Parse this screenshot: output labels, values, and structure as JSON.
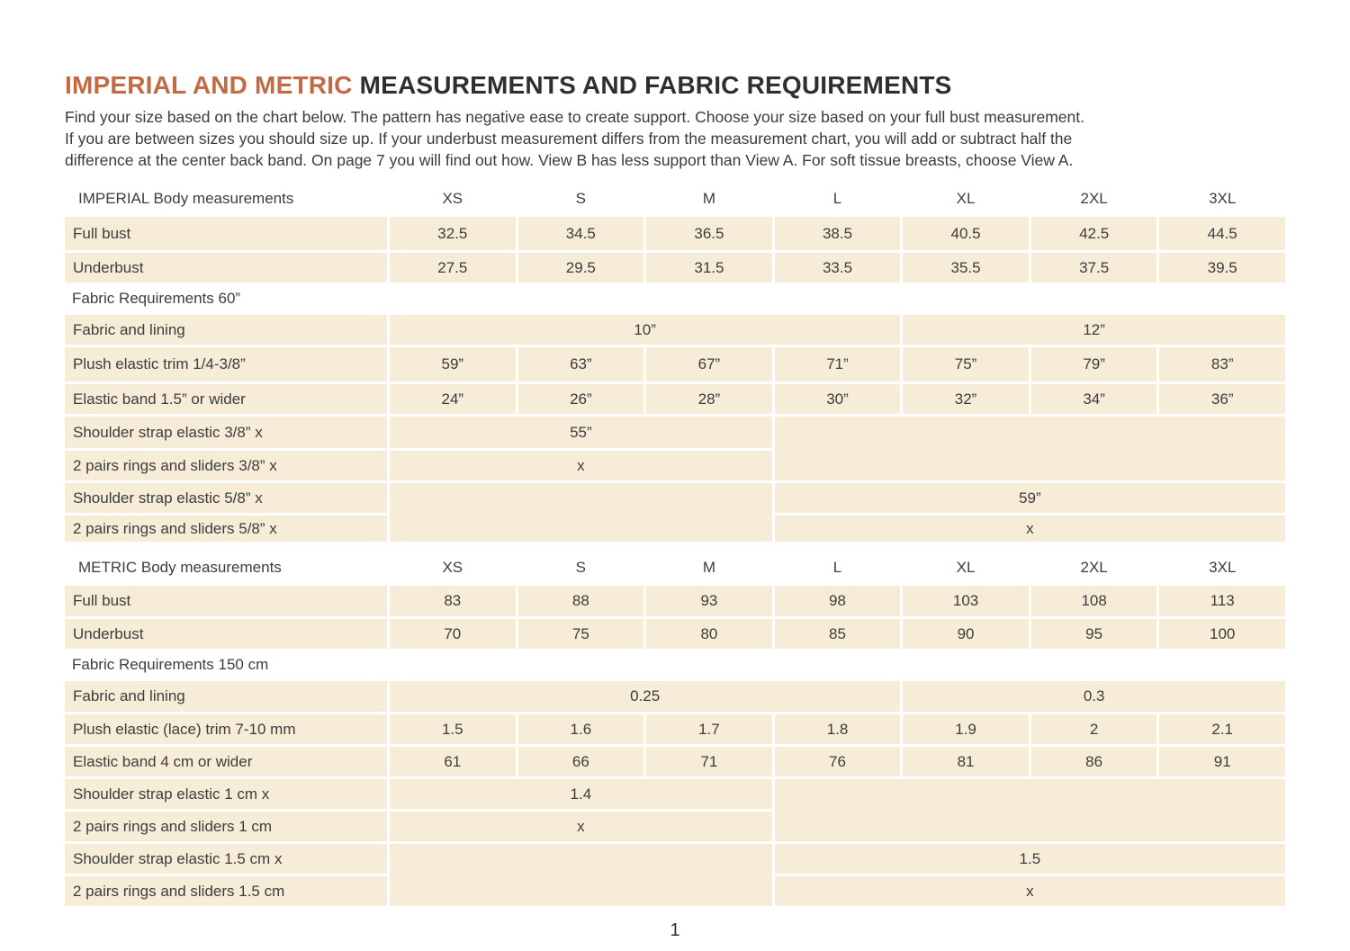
{
  "page": {
    "title_accent": "IMPERIAL AND METRIC",
    "title_rest": " MEASUREMENTS AND FABRIC REQUIREMENTS",
    "intro": [
      "Find your size based on the chart below. The pattern has negative ease to create support.  Choose your size based on your full bust measurement.",
      "If you are between sizes you should size up. If your underbust measurement differs from the measurement chart, you will add or subtract half the",
      "difference at the center back band. On page 7 you will find out how. View B has less support than View A. For soft tissue breasts, choose View A."
    ],
    "number": "1",
    "colors": {
      "accent": "#c16b44",
      "cell_bg": "#f6ecd7",
      "text": "#3d3d3d"
    }
  },
  "sizes": [
    "XS",
    "S",
    "M",
    "L",
    "XL",
    "2XL",
    "3XL"
  ],
  "imperial": {
    "section_label": "IMPERIAL Body measurements",
    "full_bust": {
      "label": "Full bust",
      "values": [
        "32.5",
        "34.5",
        "36.5",
        "38.5",
        "40.5",
        "42.5",
        "44.5"
      ]
    },
    "underbust": {
      "label": "Underbust",
      "values": [
        "27.5",
        "29.5",
        "31.5",
        "33.5",
        "35.5",
        "37.5",
        "39.5"
      ]
    },
    "fabric_requirements_label": "Fabric Requirements 60”",
    "fabric_lining": {
      "label": "Fabric and lining",
      "group_a": "10”",
      "group_b": "12”"
    },
    "plush_elastic": {
      "label": "Plush elastic trim 1/4-3/8”",
      "values": [
        "59”",
        "63”",
        "67”",
        "71”",
        "75”",
        "79”",
        "83”"
      ]
    },
    "elastic_band": {
      "label": "Elastic band 1.5” or wider",
      "values": [
        "24”",
        "26”",
        "28”",
        "30”",
        "32”",
        "34”",
        "36”"
      ]
    },
    "strap_small": {
      "label": "Shoulder strap elastic 3/8” x",
      "value": "55”"
    },
    "rings_small": {
      "label": "2 pairs rings and sliders 3/8” x",
      "value": "x"
    },
    "strap_large": {
      "label": "Shoulder strap elastic 5/8” x",
      "value": "59”"
    },
    "rings_large": {
      "label": "2 pairs rings and sliders 5/8” x",
      "value": "x"
    }
  },
  "metric": {
    "section_label": "METRIC Body measurements",
    "full_bust": {
      "label": "Full bust",
      "values": [
        "83",
        "88",
        "93",
        "98",
        "103",
        "108",
        "113"
      ]
    },
    "underbust": {
      "label": "Underbust",
      "values": [
        "70",
        "75",
        "80",
        "85",
        "90",
        "95",
        "100"
      ]
    },
    "fabric_requirements_label": "Fabric Requirements 150 cm",
    "fabric_lining": {
      "label": "Fabric and lining",
      "group_a": "0.25",
      "group_b": "0.3"
    },
    "plush_elastic": {
      "label": "Plush elastic (lace) trim 7-10 mm",
      "values": [
        "1.5",
        "1.6",
        "1.7",
        "1.8",
        "1.9",
        "2",
        "2.1"
      ]
    },
    "elastic_band": {
      "label": "Elastic band 4 cm or wider",
      "values": [
        "61",
        "66",
        "71",
        "76",
        "81",
        "86",
        "91"
      ]
    },
    "strap_small": {
      "label": "Shoulder strap elastic 1 cm x",
      "value": "1.4"
    },
    "rings_small": {
      "label": "2 pairs rings and sliders 1 cm",
      "value": "x"
    },
    "strap_large": {
      "label": "Shoulder strap elastic 1.5 cm x",
      "value": "1.5"
    },
    "rings_large": {
      "label": "2 pairs rings and sliders 1.5 cm",
      "value": "x"
    }
  }
}
